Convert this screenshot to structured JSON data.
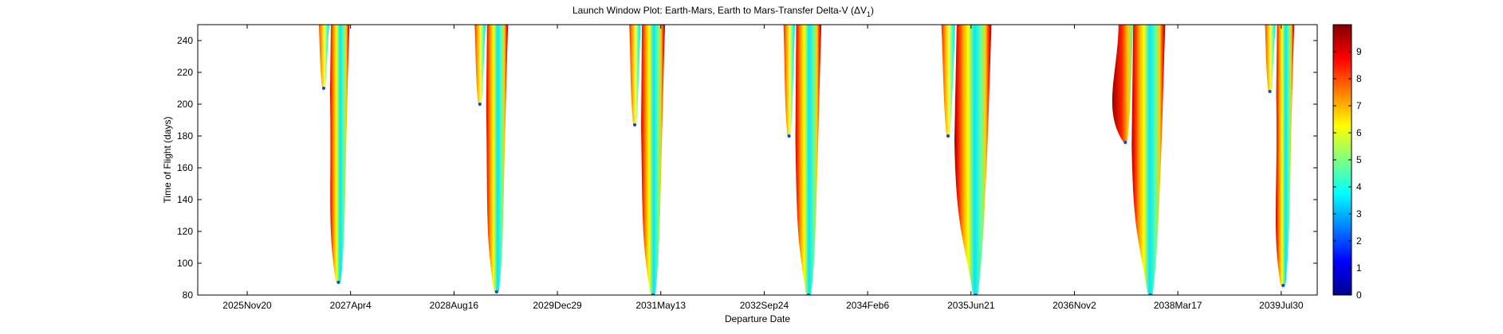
{
  "figure": {
    "title_main": "Launch Window Plot: Earth-Mars, Earth to Mars-Transfer Delta-V (ΔV",
    "title_sub": "1",
    "title_close": ")"
  },
  "chart_data": {
    "type": "heatmap",
    "title": "Launch Window Plot: Earth-Mars, Earth to Mars-Transfer Delta-V (ΔV1)",
    "xlabel": "Departure Date",
    "ylabel": "Time of Flight (days)",
    "x_ticks": [
      "2025Nov20",
      "2027Apr4",
      "2028Aug16",
      "2029Dec29",
      "2031May13",
      "2032Sep24",
      "2034Feb6",
      "2035Jun21",
      "2036Nov2",
      "2038Mar17",
      "2039Jul30"
    ],
    "y_ticks": [
      80,
      100,
      120,
      140,
      160,
      180,
      200,
      220,
      240
    ],
    "ylim": [
      80,
      250
    ],
    "xlim": [
      "2025Mar26",
      "2040Jan20"
    ],
    "colorbar": {
      "ticks": [
        0,
        1,
        2,
        3,
        4,
        5,
        6,
        7,
        8,
        9
      ],
      "range": [
        0,
        10
      ],
      "colormap": "jet"
    },
    "grid": false,
    "launch_windows": [
      {
        "window": 1,
        "short_way_min": {
          "departure": "2026Nov25",
          "tof_days": 210
        },
        "long_way_tip": {
          "departure": "2027Feb04",
          "tof_days": 88
        }
      },
      {
        "window": 2,
        "short_way_min": {
          "departure": "2028Dec19",
          "tof_days": 200
        },
        "long_way_tip": {
          "departure": "2029Mar10",
          "tof_days": 82
        }
      },
      {
        "window": 3,
        "short_way_min": {
          "departure": "2031Jan07",
          "tof_days": 187
        },
        "long_way_tip": {
          "departure": "2031Apr05",
          "tof_days": 80
        }
      },
      {
        "window": 4,
        "short_way_min": {
          "departure": "2033Jan22",
          "tof_days": 180
        },
        "long_way_tip": {
          "departure": "2033Apr27",
          "tof_days": 80
        }
      },
      {
        "window": 5,
        "short_way_min": {
          "departure": "2035Mar02",
          "tof_days": 180
        },
        "long_way_tip": {
          "departure": "2035Jul13",
          "tof_days": 80
        }
      },
      {
        "window": 6,
        "short_way_min": {
          "departure": "2037Jul06",
          "tof_days": 176
        },
        "long_way_tip": {
          "departure": "2037Nov04",
          "tof_days": 80
        }
      },
      {
        "window": 7,
        "short_way_min": {
          "departure": "2039Jun05",
          "tof_days": 208
        },
        "long_way_tip": {
          "departure": "2039Aug08",
          "tof_days": 86
        }
      }
    ]
  }
}
